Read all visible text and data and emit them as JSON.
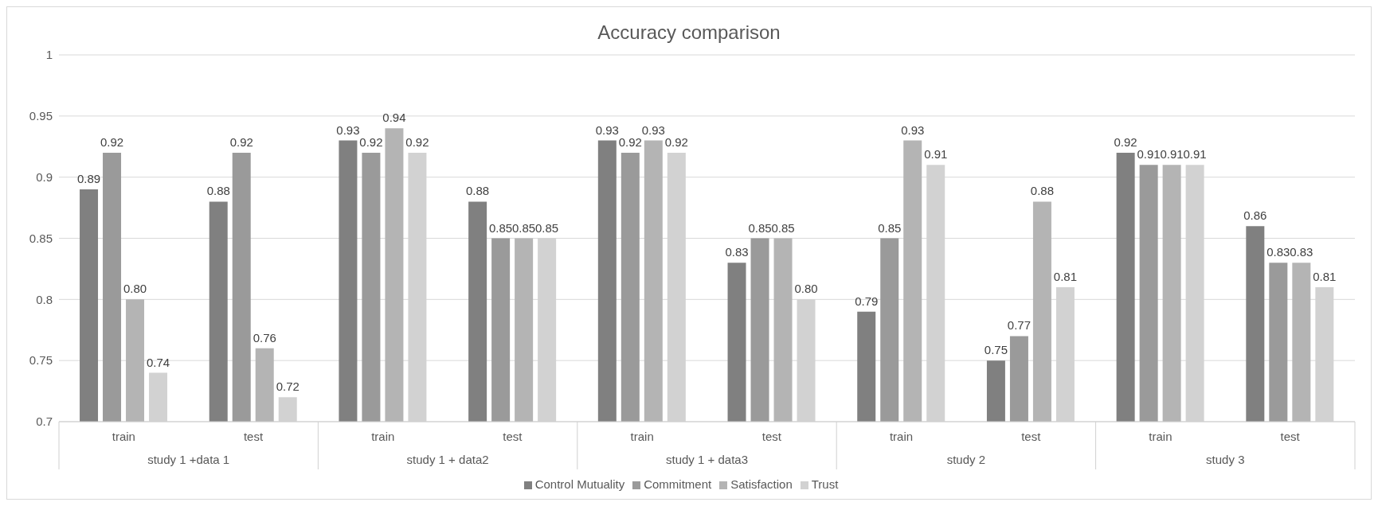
{
  "chart_data": {
    "type": "bar",
    "title": "Accuracy comparison",
    "categories": [
      "train",
      "test",
      "train",
      "test",
      "train",
      "test",
      "train",
      "test",
      "train",
      "test"
    ],
    "annotations": [
      "study 1 +data 1",
      "study 1 + data2",
      "study 1 + data3",
      "study 2",
      "study 3"
    ],
    "series": [
      {
        "name": "Control Mutuality",
        "color": "#808080",
        "values": [
          0.89,
          0.88,
          0.93,
          0.88,
          0.93,
          0.83,
          0.79,
          0.75,
          0.92,
          0.86
        ],
        "value_labels": [
          "0.89",
          "0.88",
          "0.93",
          "0.88",
          "0.93",
          "0.83",
          "0.79",
          "0.75",
          "0.92",
          "0.86"
        ]
      },
      {
        "name": "Commitment",
        "color": "#9a9a9a",
        "values": [
          0.92,
          0.92,
          0.92,
          0.85,
          0.92,
          0.85,
          0.85,
          0.77,
          0.91,
          0.83
        ],
        "value_labels": [
          "0.92",
          "0.92",
          "0.92",
          "0.85",
          "0.92",
          "0.85",
          "0.85",
          "0.77",
          "0.91",
          "0.83"
        ]
      },
      {
        "name": "Satisfaction",
        "color": "#b4b4b4",
        "values": [
          0.8,
          0.76,
          0.94,
          0.85,
          0.93,
          0.85,
          0.93,
          0.88,
          0.91,
          0.83
        ],
        "value_labels": [
          "0.80",
          "0.76",
          "0.94",
          "0.85",
          "0.93",
          "0.85",
          "0.93",
          "0.88",
          "0.91",
          "0.83"
        ]
      },
      {
        "name": "Trust",
        "color": "#d2d2d2",
        "values": [
          0.74,
          0.72,
          0.92,
          0.85,
          0.92,
          0.8,
          0.91,
          0.81,
          0.91,
          0.81
        ],
        "value_labels": [
          "0.74",
          "0.72",
          "0.92",
          "0.85",
          "0.92",
          "0.80",
          "0.91",
          "0.81",
          "0.91",
          "0.81"
        ]
      }
    ],
    "ylim": [
      0.7,
      1
    ],
    "yticks": [
      0.7,
      0.75,
      0.8,
      0.85,
      0.9,
      0.95,
      1
    ],
    "grid": "y",
    "legend": "bottom"
  }
}
